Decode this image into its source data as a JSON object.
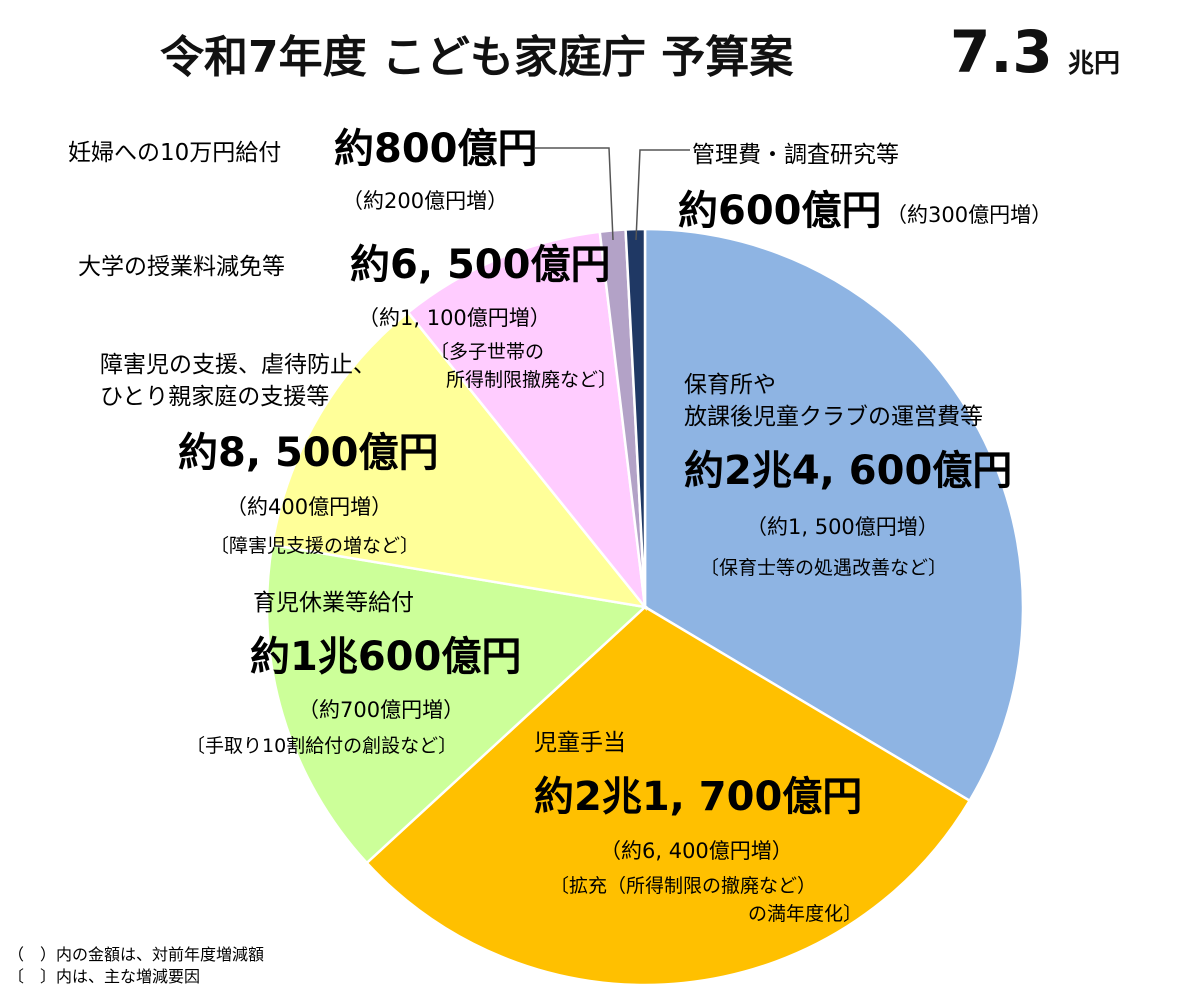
{
  "title": {
    "main": "令和7年度 こども家庭庁 予算案",
    "value": "7.3",
    "unit": "兆円"
  },
  "chart_data": {
    "type": "pie",
    "unit": "億円",
    "total_label": "7.3兆円",
    "start": "12 o'clock, clockwise",
    "slices": [
      {
        "name": "保育所や放課後児童クラブの運営費等",
        "name_lines": [
          "保育所や",
          "放課後児童クラブの運営費等"
        ],
        "value": 24600,
        "amount_text": "約2兆4, 600億円",
        "change_text": "（約1, 500億円増）",
        "reason_lines": [
          "〔保育士等の処遇改善など〕"
        ],
        "color": "#8EB4E3"
      },
      {
        "name": "児童手当",
        "name_lines": [
          "児童手当"
        ],
        "value": 21700,
        "amount_text": "約2兆1, 700億円",
        "change_text": "（約6, 400億円増）",
        "reason_lines": [
          "〔拡充（所得制限の撤廃など）",
          "の満年度化〕"
        ],
        "color": "#FFC000"
      },
      {
        "name": "育児休業等給付",
        "name_lines": [
          "育児休業等給付"
        ],
        "value": 10600,
        "amount_text": "約1兆600億円",
        "change_text": "（約700億円増）",
        "reason_lines": [
          "〔手取り10割給付の創設など〕"
        ],
        "color": "#CCFF99"
      },
      {
        "name": "障害児の支援、虐待防止、ひとり親家庭の支援等",
        "name_lines": [
          "障害児の支援、虐待防止、",
          "ひとり親家庭の支援等"
        ],
        "value": 8500,
        "amount_text": "約8, 500億円",
        "change_text": "（約400億円増）",
        "reason_lines": [
          "〔障害児支援の増など〕"
        ],
        "color": "#FFFF99"
      },
      {
        "name": "大学の授業料減免等",
        "name_lines": [
          "大学の授業料減免等"
        ],
        "value": 6500,
        "amount_text": "約6, 500億円",
        "change_text": "（約1, 100億円増）",
        "reason_lines": [
          "〔多子世帯の",
          "所得制限撤廃など〕"
        ],
        "color": "#FFCCFF"
      },
      {
        "name": "妊婦への10万円給付",
        "name_lines": [
          "妊婦への10万円給付"
        ],
        "value": 800,
        "amount_text": "約800億円",
        "change_text": "（約200億円増）",
        "reason_lines": [],
        "color": "#B3A2C7"
      },
      {
        "name": "管理費・調査研究等",
        "name_lines": [
          "管理費・調査研究等"
        ],
        "value": 600,
        "amount_text": "約600億円",
        "change_text": "（約300億円増）",
        "reason_lines": [],
        "color": "#1F3864"
      }
    ]
  },
  "notes": [
    "（　）内の金額は、対前年度増減額",
    "〔　〕内は、主な増減要因"
  ]
}
